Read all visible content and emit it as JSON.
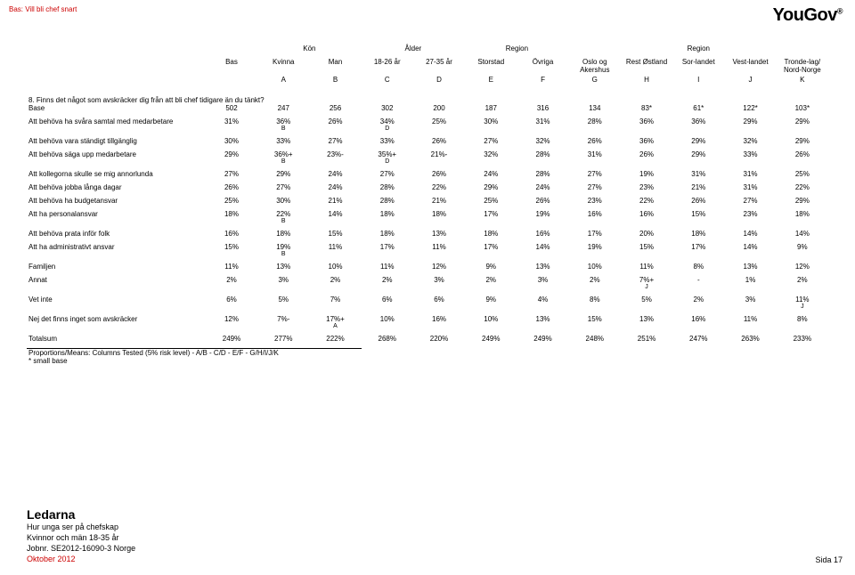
{
  "top_left": "Bas: Vill bli chef snart",
  "logo": "YouGov",
  "header_groups": [
    "",
    "Kön",
    "Ålder",
    "Region",
    "Region"
  ],
  "columns": [
    "Bas",
    "Kvinna",
    "Man",
    "18-26 år",
    "27-35 år",
    "Storstad",
    "Övriga",
    "Oslo og Akershus",
    "Rest Østland",
    "Sor-landet",
    "Vest-landet",
    "Tronde-lag/ Nord-Norge"
  ],
  "letters": [
    "",
    "A",
    "B",
    "C",
    "D",
    "E",
    "F",
    "G",
    "H",
    "I",
    "J",
    "K"
  ],
  "question": "8. Finns det något som avskräcker dig från att bli chef tidigare än du tänkt?",
  "rows": [
    {
      "label": "Base",
      "vals": [
        "502",
        "247",
        "256",
        "302",
        "200",
        "187",
        "316",
        "134",
        "83*",
        "61*",
        "122*",
        "103*"
      ]
    },
    {
      "label": "Att behöva ha svåra samtal med medarbetare",
      "vals": [
        "31%",
        "36%",
        "26%",
        "34%",
        "25%",
        "30%",
        "31%",
        "28%",
        "36%",
        "36%",
        "29%",
        "29%"
      ],
      "sup": [
        "",
        "B",
        "",
        "D",
        "",
        "",
        "",
        "",
        "",
        "",
        "",
        ""
      ]
    },
    {
      "label": "Att behöva vara ständigt tillgänglig",
      "vals": [
        "30%",
        "33%",
        "27%",
        "33%",
        "26%",
        "27%",
        "32%",
        "26%",
        "36%",
        "29%",
        "32%",
        "29%"
      ]
    },
    {
      "label": "Att behöva säga upp medarbetare",
      "vals": [
        "29%",
        "36%+",
        "23%-",
        "35%+",
        "21%-",
        "32%",
        "28%",
        "31%",
        "26%",
        "29%",
        "33%",
        "26%"
      ],
      "sup": [
        "",
        "B",
        "",
        "D",
        "",
        "",
        "",
        "",
        "",
        "",
        "",
        ""
      ]
    },
    {
      "label": "Att kollegorna skulle se mig annorlunda",
      "vals": [
        "27%",
        "29%",
        "24%",
        "27%",
        "26%",
        "24%",
        "28%",
        "27%",
        "19%",
        "31%",
        "31%",
        "25%"
      ]
    },
    {
      "label": "Att behöva jobba långa dagar",
      "vals": [
        "26%",
        "27%",
        "24%",
        "28%",
        "22%",
        "29%",
        "24%",
        "27%",
        "23%",
        "21%",
        "31%",
        "22%"
      ]
    },
    {
      "label": "Att behöva ha budgetansvar",
      "vals": [
        "25%",
        "30%",
        "21%",
        "28%",
        "21%",
        "25%",
        "26%",
        "23%",
        "22%",
        "26%",
        "27%",
        "29%"
      ]
    },
    {
      "label": "Att ha personalansvar",
      "vals": [
        "18%",
        "22%",
        "14%",
        "18%",
        "18%",
        "17%",
        "19%",
        "16%",
        "16%",
        "15%",
        "23%",
        "18%"
      ],
      "sup": [
        "",
        "B",
        "",
        "",
        "",
        "",
        "",
        "",
        "",
        "",
        "",
        ""
      ]
    },
    {
      "label": "Att behöva prata inför folk",
      "vals": [
        "16%",
        "18%",
        "15%",
        "18%",
        "13%",
        "18%",
        "16%",
        "17%",
        "20%",
        "18%",
        "14%",
        "14%"
      ]
    },
    {
      "label": "Att ha administrativt ansvar",
      "vals": [
        "15%",
        "19%",
        "11%",
        "17%",
        "11%",
        "17%",
        "14%",
        "19%",
        "15%",
        "17%",
        "14%",
        "9%"
      ],
      "sup": [
        "",
        "B",
        "",
        "",
        "",
        "",
        "",
        "",
        "",
        "",
        "",
        ""
      ]
    },
    {
      "label": "Familjen",
      "vals": [
        "11%",
        "13%",
        "10%",
        "11%",
        "12%",
        "9%",
        "13%",
        "10%",
        "11%",
        "8%",
        "13%",
        "12%"
      ]
    },
    {
      "label": "Annat",
      "vals": [
        "2%",
        "3%",
        "2%",
        "2%",
        "3%",
        "2%",
        "3%",
        "2%",
        "7%+",
        "-",
        "1%",
        "2%"
      ],
      "sup": [
        "",
        "",
        "",
        "",
        "",
        "",
        "",
        "",
        "J",
        "",
        "",
        ""
      ]
    },
    {
      "label": "Vet inte",
      "vals": [
        "6%",
        "5%",
        "7%",
        "6%",
        "6%",
        "9%",
        "4%",
        "8%",
        "5%",
        "2%",
        "3%",
        "11%"
      ],
      "sup": [
        "",
        "",
        "",
        "",
        "",
        "",
        "",
        "",
        "",
        "",
        "",
        "J"
      ]
    },
    {
      "label": "Nej det finns inget som avskräcker",
      "vals": [
        "12%",
        "7%-",
        "17%+",
        "10%",
        "16%",
        "10%",
        "13%",
        "15%",
        "13%",
        "16%",
        "11%",
        "8%"
      ],
      "sup": [
        "",
        "",
        "A",
        "",
        "",
        "",
        "",
        "",
        "",
        "",
        "",
        ""
      ]
    },
    {
      "label": "Totalsum",
      "vals": [
        "249%",
        "277%",
        "222%",
        "268%",
        "220%",
        "249%",
        "249%",
        "248%",
        "251%",
        "247%",
        "263%",
        "233%"
      ]
    }
  ],
  "proportions_note": "Proportions/Means: Columns Tested (5% risk level) - A/B - C/D - E/F - G/H/I/J/K",
  "small_base_note": "* small base",
  "footer": {
    "brand": "Ledarna",
    "lines": [
      "Hur unga ser på chefskap",
      "Kvinnor och män 18-35 år",
      "Jobnr. SE2012-16090-3 Norge",
      "Oktober 2012"
    ],
    "page": "Sida 17"
  }
}
